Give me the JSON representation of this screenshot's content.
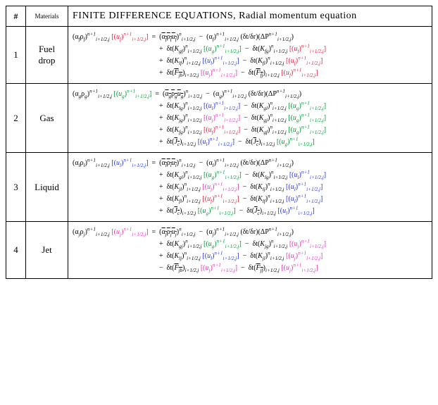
{
  "header": {
    "num": "#",
    "materials": "Materials",
    "title": "FINITE  DIFFERENCE  EQUATIONS,  Radial  momentum  equation"
  },
  "sub": "i+1/2,j",
  "dtdr": "(δt/δr)",
  "dP": "(ΔP",
  "colors": {
    "green": "#009933",
    "red": "#dd2244",
    "blue": "#2233dd",
    "magenta": "#dd33bb",
    "black": "#000000"
  },
  "rows": [
    {
      "num": "1",
      "material": "Fuel drop",
      "phase": "f",
      "lhs_color": "red",
      "rhs_lines": [
        [
          {
            "type": "ovlrho",
            "phase": "f",
            "sup": "n"
          },
          {
            "type": "minus"
          },
          {
            "type": "alpha",
            "phase": "f",
            "sup": "n+1"
          },
          {
            "type": "dtdrdp",
            "phase": "f"
          }
        ],
        [
          {
            "type": "plus"
          },
          {
            "type": "K",
            "sym": "gf",
            "sup": "n"
          },
          {
            "type": "u",
            "phase": "g",
            "color": "green"
          },
          {
            "type": "minus"
          },
          {
            "type": "K",
            "sym": "fg",
            "sup": "n"
          },
          {
            "type": "u",
            "phase": "f",
            "color": "red"
          }
        ],
        [
          {
            "type": "plus"
          },
          {
            "type": "K",
            "sym": "lf",
            "sup": "n"
          },
          {
            "type": "u",
            "phase": "l",
            "color": "blue"
          },
          {
            "type": "minus"
          },
          {
            "type": "K",
            "sym": "fl",
            "sup": "n"
          },
          {
            "type": "u",
            "phase": "f",
            "color": "red"
          }
        ],
        [
          {
            "type": "plus"
          },
          {
            "type": "Fovl",
            "sym": "jb"
          },
          {
            "type": "u",
            "phase": "j",
            "color": "magenta"
          },
          {
            "type": "minus"
          },
          {
            "type": "Fovl",
            "sym": "fj"
          },
          {
            "type": "u",
            "phase": "f",
            "color": "red"
          }
        ]
      ]
    },
    {
      "num": "2",
      "material": "Gas",
      "phase": "g",
      "lhs_color": "green",
      "rhs_lines": [
        [
          {
            "type": "ovlrho",
            "phase": "g",
            "sup": "n"
          },
          {
            "type": "minus"
          },
          {
            "type": "alpha",
            "phase": "g",
            "sup": "n+1"
          },
          {
            "type": "dtdrdp",
            "phase": "g"
          }
        ],
        [
          {
            "type": "plus"
          },
          {
            "type": "K",
            "sym": "lg",
            "sup": "n"
          },
          {
            "type": "u",
            "phase": "l",
            "color": "blue"
          },
          {
            "type": "minus"
          },
          {
            "type": "K",
            "sym": "gl",
            "sup": "n"
          },
          {
            "type": "u",
            "phase": "g",
            "color": "green"
          }
        ],
        [
          {
            "type": "plus"
          },
          {
            "type": "K",
            "sym": "jg",
            "sup": "n"
          },
          {
            "type": "u",
            "phase": "j",
            "color": "magenta"
          },
          {
            "type": "minus"
          },
          {
            "type": "K",
            "sym": "gj",
            "sup": "n"
          },
          {
            "type": "u",
            "phase": "g",
            "color": "green"
          }
        ],
        [
          {
            "type": "plus"
          },
          {
            "type": "K",
            "sym": "fg",
            "sup": "n"
          },
          {
            "type": "u",
            "phase": "f",
            "color": "red"
          },
          {
            "type": "minus"
          },
          {
            "type": "K",
            "sym": "gf",
            "sup": "n"
          },
          {
            "type": "u",
            "phase": "g",
            "color": "green"
          }
        ],
        [
          {
            "type": "plus"
          },
          {
            "type": "Jovl",
            "sym": "c"
          },
          {
            "type": "u",
            "phase": "l",
            "color": "blue"
          },
          {
            "type": "minus"
          },
          {
            "type": "Jovl",
            "sym": "c"
          },
          {
            "type": "u",
            "phase": "g",
            "color": "green"
          }
        ]
      ]
    },
    {
      "num": "3",
      "material": "Liquid",
      "phase": "l",
      "lhs_color": "blue",
      "rhs_lines": [
        [
          {
            "type": "ovlrho",
            "phase": "l",
            "sup": "n"
          },
          {
            "type": "minus"
          },
          {
            "type": "alpha",
            "phase": "l",
            "sup": "n+1"
          },
          {
            "type": "dtdrdp",
            "phase": "l"
          }
        ],
        [
          {
            "type": "plus"
          },
          {
            "type": "K",
            "sym": "gl",
            "sup": "n"
          },
          {
            "type": "u",
            "phase": "g",
            "color": "green"
          },
          {
            "type": "minus"
          },
          {
            "type": "K",
            "sym": "lg",
            "sup": "n"
          },
          {
            "type": "u",
            "phase": "l",
            "color": "blue"
          }
        ],
        [
          {
            "type": "plus"
          },
          {
            "type": "K",
            "sym": "jl",
            "sup": "n"
          },
          {
            "type": "u",
            "phase": "j",
            "color": "magenta"
          },
          {
            "type": "minus"
          },
          {
            "type": "K",
            "sym": "lj",
            "sup": "n"
          },
          {
            "type": "u",
            "phase": "l",
            "color": "blue"
          }
        ],
        [
          {
            "type": "plus"
          },
          {
            "type": "K",
            "sym": "fl",
            "sup": "n"
          },
          {
            "type": "u",
            "phase": "f",
            "color": "red"
          },
          {
            "type": "minus"
          },
          {
            "type": "K",
            "sym": "lf",
            "sup": "n"
          },
          {
            "type": "u",
            "phase": "l",
            "color": "blue"
          }
        ],
        [
          {
            "type": "plus"
          },
          {
            "type": "Jovl",
            "sym": "c"
          },
          {
            "type": "u",
            "phase": "g",
            "color": "green"
          },
          {
            "type": "minus"
          },
          {
            "type": "Jovl",
            "sym": "c"
          },
          {
            "type": "u",
            "phase": "l",
            "color": "blue"
          }
        ]
      ]
    },
    {
      "num": "4",
      "material": "Jet",
      "phase": "j",
      "lhs_color": "magenta",
      "rhs_lines": [
        [
          {
            "type": "ovlrho",
            "phase": "j",
            "sup": "n"
          },
          {
            "type": "minus"
          },
          {
            "type": "alpha",
            "phase": "j",
            "sup": "n+1"
          },
          {
            "type": "dtdrdp",
            "phase": "j"
          }
        ],
        [
          {
            "type": "plus"
          },
          {
            "type": "K",
            "sym": "gj",
            "sup": "n"
          },
          {
            "type": "u",
            "phase": "g",
            "color": "green"
          },
          {
            "type": "minus"
          },
          {
            "type": "K",
            "sym": "jg",
            "sup": "n"
          },
          {
            "type": "u",
            "phase": "j",
            "color": "magenta"
          }
        ],
        [
          {
            "type": "plus"
          },
          {
            "type": "K",
            "sym": "lj",
            "sup": "n"
          },
          {
            "type": "u",
            "phase": "l",
            "color": "blue"
          },
          {
            "type": "minus"
          },
          {
            "type": "K",
            "sym": "jl",
            "sup": "n"
          },
          {
            "type": "u",
            "phase": "j",
            "color": "magenta"
          }
        ],
        [
          {
            "type": "minus"
          },
          {
            "type": "Fovl",
            "sym": "jb"
          },
          {
            "type": "u",
            "phase": "j",
            "color": "magenta"
          },
          {
            "type": "minus"
          },
          {
            "type": "Fovl",
            "sym": "jf"
          },
          {
            "type": "u",
            "phase": "j",
            "color": "magenta"
          }
        ]
      ]
    }
  ]
}
